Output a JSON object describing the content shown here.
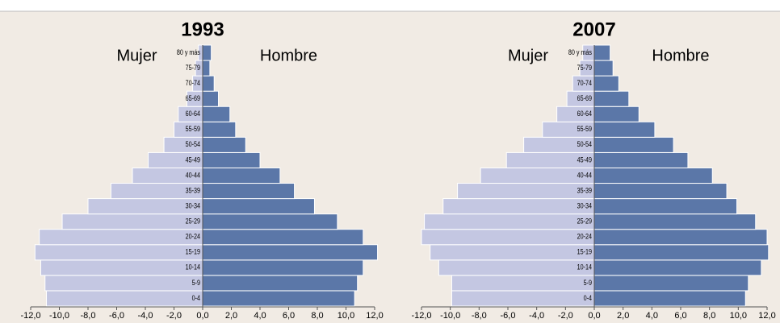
{
  "chart_data": [
    {
      "type": "pyramid",
      "title": "1993",
      "categories": [
        "0-4",
        "5-9",
        "10-14",
        "15-19",
        "20-24",
        "25-29",
        "30-34",
        "35-39",
        "40-44",
        "45-49",
        "50-54",
        "55-59",
        "60-64",
        "65-69",
        "70-74",
        "75-79",
        "80 y más"
      ],
      "series": [
        {
          "name": "Mujer",
          "color": "#c4c7e2",
          "values": [
            -10.9,
            -11.0,
            -11.3,
            -11.7,
            -11.4,
            -9.8,
            -8.0,
            -6.4,
            -4.9,
            -3.8,
            -2.7,
            -2.0,
            -1.7,
            -1.1,
            -0.7,
            -0.5,
            -0.3
          ]
        },
        {
          "name": "Hombre",
          "color": "#5b77a8",
          "values": [
            10.6,
            10.8,
            11.2,
            12.2,
            11.2,
            9.4,
            7.8,
            6.4,
            5.4,
            4.0,
            3.0,
            2.3,
            1.9,
            1.1,
            0.8,
            0.5,
            0.6
          ]
        }
      ],
      "xlim": [
        -12,
        12
      ],
      "xticks": [
        {
          "value": -12,
          "label": "-12,0"
        },
        {
          "value": -10,
          "label": "-10,0"
        },
        {
          "value": -8,
          "label": "-8,0"
        },
        {
          "value": -6,
          "label": "-6,0"
        },
        {
          "value": -4,
          "label": "-4,0"
        },
        {
          "value": -2,
          "label": "-2,0"
        },
        {
          "value": 0,
          "label": "0,0"
        },
        {
          "value": 2,
          "label": "2,0"
        },
        {
          "value": 4,
          "label": "4,0"
        },
        {
          "value": 6,
          "label": "6,0"
        },
        {
          "value": 8,
          "label": "8,0"
        },
        {
          "value": 10,
          "label": "10,0"
        },
        {
          "value": 12,
          "label": "12,0"
        }
      ]
    },
    {
      "type": "pyramid",
      "title": "2007",
      "categories": [
        "0-4",
        "5-9",
        "10-14",
        "15-19",
        "20-24",
        "25-29",
        "30-34",
        "35-39",
        "40-44",
        "45-49",
        "50-54",
        "55-59",
        "60-64",
        "65-69",
        "70-74",
        "75-79",
        "80 y más"
      ],
      "series": [
        {
          "name": "Mujer",
          "color": "#c4c7e2",
          "values": [
            -9.9,
            -9.9,
            -10.8,
            -11.4,
            -12.0,
            -11.8,
            -10.5,
            -9.5,
            -7.9,
            -6.1,
            -4.9,
            -3.6,
            -2.6,
            -1.9,
            -1.5,
            -1.0,
            -0.8
          ]
        },
        {
          "name": "Hombre",
          "color": "#5b77a8",
          "values": [
            10.5,
            10.7,
            11.6,
            12.1,
            12.0,
            11.2,
            9.9,
            9.2,
            8.2,
            6.5,
            5.5,
            4.2,
            3.1,
            2.4,
            1.7,
            1.3,
            1.1
          ]
        }
      ],
      "xlim": [
        -12,
        12
      ],
      "xticks": [
        {
          "value": -12,
          "label": "-12,0"
        },
        {
          "value": -10,
          "label": "-10,0"
        },
        {
          "value": -8,
          "label": "-8,0"
        },
        {
          "value": -6,
          "label": "-6,0"
        },
        {
          "value": -4,
          "label": "-4,0"
        },
        {
          "value": -2,
          "label": "-2,0"
        },
        {
          "value": 0,
          "label": "0,0"
        },
        {
          "value": 2,
          "label": "2,0"
        },
        {
          "value": 4,
          "label": "4,0"
        },
        {
          "value": 6,
          "label": "6,0"
        },
        {
          "value": 8,
          "label": "8,0"
        },
        {
          "value": 10,
          "label": "10,0"
        },
        {
          "value": 12,
          "label": "12,0"
        }
      ]
    }
  ]
}
